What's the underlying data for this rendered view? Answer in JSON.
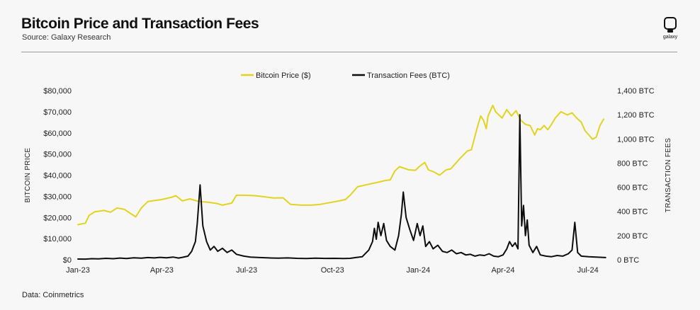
{
  "header": {
    "title": "Bitcoin Price and Transaction Fees",
    "subtitle": "Source: Galaxy Research",
    "logo_text": "galaxy"
  },
  "footer": {
    "note": "Data: Coinmetrics"
  },
  "colors": {
    "price": "#e3d321",
    "fees": "#0d0d0d",
    "text": "#222222",
    "rule": "#9a9a9a"
  },
  "chart_data": {
    "type": "line",
    "title": "Bitcoin Price and Transaction Fees",
    "x_labels": [
      "Jan-23",
      "Apr-23",
      "Jul-23",
      "Oct-23",
      "Jan-24",
      "Apr-24",
      "Jul-24"
    ],
    "x_label_days": [
      0,
      90,
      181,
      273,
      365,
      456,
      547
    ],
    "x_range_days": [
      0,
      570
    ],
    "y_left": {
      "title": "BITCOIN PRICE",
      "range": [
        0,
        80000
      ],
      "ticks": [
        0,
        10000,
        20000,
        30000,
        40000,
        50000,
        60000,
        70000,
        80000
      ],
      "tick_labels": [
        "$0",
        "$10,000",
        "$20,000",
        "$30,000",
        "$40,000",
        "$50,000",
        "$60,000",
        "$70,000",
        "$80,000"
      ]
    },
    "y_right": {
      "title": "TRANSACTION FEES",
      "range": [
        0,
        1400
      ],
      "ticks": [
        0,
        200,
        400,
        600,
        800,
        1000,
        1200,
        1400
      ],
      "tick_labels": [
        "0 BTC",
        "200 BTC",
        "400 BTC",
        "600 BTC",
        "800 BTC",
        "1,000 BTC",
        "1,200 BTC",
        "1,400 BTC"
      ]
    },
    "legend_position": "top-center",
    "series": [
      {
        "name": "Bitcoin Price ($)",
        "axis": "left",
        "points": [
          [
            0,
            16600
          ],
          [
            8,
            17300
          ],
          [
            12,
            21000
          ],
          [
            18,
            22700
          ],
          [
            28,
            23300
          ],
          [
            35,
            22500
          ],
          [
            42,
            24500
          ],
          [
            50,
            23800
          ],
          [
            55,
            22300
          ],
          [
            62,
            20300
          ],
          [
            68,
            24500
          ],
          [
            75,
            27500
          ],
          [
            82,
            28000
          ],
          [
            90,
            28500
          ],
          [
            100,
            29500
          ],
          [
            105,
            30300
          ],
          [
            112,
            27800
          ],
          [
            120,
            28800
          ],
          [
            130,
            27500
          ],
          [
            140,
            27200
          ],
          [
            150,
            26500
          ],
          [
            155,
            25800
          ],
          [
            165,
            26800
          ],
          [
            170,
            30500
          ],
          [
            180,
            30500
          ],
          [
            190,
            30300
          ],
          [
            200,
            29800
          ],
          [
            210,
            29200
          ],
          [
            220,
            29300
          ],
          [
            228,
            26200
          ],
          [
            240,
            25800
          ],
          [
            250,
            25800
          ],
          [
            260,
            26200
          ],
          [
            270,
            27000
          ],
          [
            280,
            27800
          ],
          [
            287,
            28500
          ],
          [
            292,
            30500
          ],
          [
            300,
            34500
          ],
          [
            310,
            35500
          ],
          [
            320,
            36500
          ],
          [
            330,
            37500
          ],
          [
            335,
            37800
          ],
          [
            340,
            42000
          ],
          [
            345,
            44000
          ],
          [
            355,
            42500
          ],
          [
            362,
            42300
          ],
          [
            366,
            44000
          ],
          [
            372,
            46000
          ],
          [
            376,
            42500
          ],
          [
            382,
            41500
          ],
          [
            388,
            40000
          ],
          [
            395,
            42500
          ],
          [
            400,
            43000
          ],
          [
            410,
            48000
          ],
          [
            418,
            51500
          ],
          [
            422,
            52000
          ],
          [
            428,
            62000
          ],
          [
            432,
            68000
          ],
          [
            435,
            66000
          ],
          [
            438,
            62000
          ],
          [
            440,
            68000
          ],
          [
            445,
            73000
          ],
          [
            448,
            70000
          ],
          [
            455,
            67000
          ],
          [
            460,
            71000
          ],
          [
            465,
            68000
          ],
          [
            470,
            70500
          ],
          [
            475,
            66000
          ],
          [
            480,
            64000
          ],
          [
            485,
            63500
          ],
          [
            490,
            59000
          ],
          [
            493,
            62000
          ],
          [
            496,
            61500
          ],
          [
            500,
            63500
          ],
          [
            504,
            61500
          ],
          [
            508,
            64000
          ],
          [
            512,
            67000
          ],
          [
            518,
            70000
          ],
          [
            525,
            68500
          ],
          [
            530,
            69500
          ],
          [
            535,
            67000
          ],
          [
            540,
            65000
          ],
          [
            544,
            61000
          ],
          [
            548,
            59000
          ],
          [
            552,
            57000
          ],
          [
            556,
            58000
          ],
          [
            560,
            63500
          ],
          [
            564,
            66500
          ]
        ]
      },
      {
        "name": "Transaction Fees (BTC)",
        "axis": "right",
        "points": [
          [
            0,
            6
          ],
          [
            8,
            5
          ],
          [
            15,
            9
          ],
          [
            22,
            7
          ],
          [
            30,
            12
          ],
          [
            38,
            9
          ],
          [
            45,
            14
          ],
          [
            52,
            10
          ],
          [
            60,
            16
          ],
          [
            68,
            13
          ],
          [
            75,
            18
          ],
          [
            82,
            15
          ],
          [
            88,
            20
          ],
          [
            95,
            16
          ],
          [
            102,
            22
          ],
          [
            108,
            14
          ],
          [
            112,
            20
          ],
          [
            118,
            30
          ],
          [
            122,
            70
          ],
          [
            126,
            150
          ],
          [
            128,
            300
          ],
          [
            131,
            620
          ],
          [
            134,
            280
          ],
          [
            138,
            150
          ],
          [
            142,
            80
          ],
          [
            146,
            110
          ],
          [
            150,
            70
          ],
          [
            155,
            95
          ],
          [
            160,
            60
          ],
          [
            165,
            80
          ],
          [
            170,
            45
          ],
          [
            178,
            30
          ],
          [
            185,
            22
          ],
          [
            195,
            18
          ],
          [
            205,
            15
          ],
          [
            215,
            13
          ],
          [
            225,
            15
          ],
          [
            235,
            12
          ],
          [
            245,
            10
          ],
          [
            255,
            13
          ],
          [
            265,
            11
          ],
          [
            275,
            12
          ],
          [
            285,
            10
          ],
          [
            292,
            12
          ],
          [
            298,
            18
          ],
          [
            305,
            25
          ],
          [
            312,
            80
          ],
          [
            316,
            150
          ],
          [
            318,
            260
          ],
          [
            320,
            170
          ],
          [
            322,
            310
          ],
          [
            325,
            200
          ],
          [
            328,
            300
          ],
          [
            331,
            160
          ],
          [
            335,
            110
          ],
          [
            340,
            80
          ],
          [
            344,
            200
          ],
          [
            347,
            380
          ],
          [
            349,
            560
          ],
          [
            352,
            350
          ],
          [
            356,
            250
          ],
          [
            360,
            160
          ],
          [
            364,
            300
          ],
          [
            367,
            200
          ],
          [
            370,
            280
          ],
          [
            373,
            110
          ],
          [
            377,
            150
          ],
          [
            381,
            90
          ],
          [
            386,
            120
          ],
          [
            391,
            70
          ],
          [
            396,
            60
          ],
          [
            401,
            80
          ],
          [
            406,
            50
          ],
          [
            411,
            60
          ],
          [
            416,
            40
          ],
          [
            421,
            45
          ],
          [
            426,
            30
          ],
          [
            431,
            40
          ],
          [
            436,
            35
          ],
          [
            441,
            50
          ],
          [
            446,
            30
          ],
          [
            451,
            25
          ],
          [
            456,
            40
          ],
          [
            460,
            90
          ],
          [
            463,
            150
          ],
          [
            466,
            110
          ],
          [
            469,
            140
          ],
          [
            472,
            90
          ],
          [
            474,
            1200
          ],
          [
            476,
            280
          ],
          [
            478,
            450
          ],
          [
            480,
            200
          ],
          [
            482,
            330
          ],
          [
            484,
            120
          ],
          [
            488,
            60
          ],
          [
            492,
            110
          ],
          [
            496,
            40
          ],
          [
            502,
            30
          ],
          [
            508,
            25
          ],
          [
            514,
            35
          ],
          [
            520,
            30
          ],
          [
            526,
            50
          ],
          [
            530,
            80
          ],
          [
            533,
            310
          ],
          [
            536,
            60
          ],
          [
            540,
            30
          ],
          [
            548,
            25
          ],
          [
            556,
            22
          ],
          [
            562,
            20
          ],
          [
            566,
            18
          ]
        ]
      }
    ]
  }
}
